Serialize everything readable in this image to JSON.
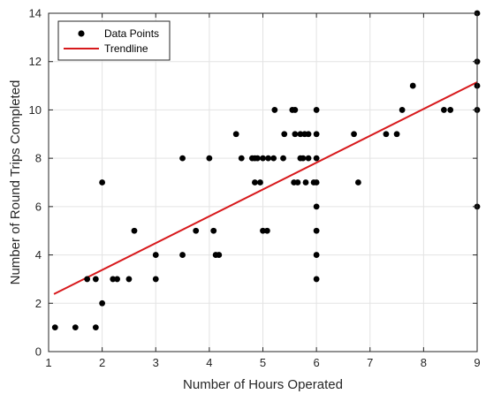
{
  "chart_data": {
    "type": "scatter",
    "title": "",
    "xlabel": "Number of Hours Operated",
    "ylabel": "Number of Round Trips Completed",
    "xlim": [
      1,
      9
    ],
    "ylim": [
      0,
      14
    ],
    "xticks": [
      1,
      2,
      3,
      4,
      5,
      6,
      7,
      8,
      9
    ],
    "yticks": [
      0,
      2,
      4,
      6,
      8,
      10,
      12,
      14
    ],
    "grid": true,
    "legend_position": "top-left",
    "series": [
      {
        "name": "Data Points",
        "kind": "scatter",
        "color": "#000000",
        "points": [
          [
            1.12,
            1
          ],
          [
            1.5,
            1
          ],
          [
            1.88,
            1
          ],
          [
            1.72,
            3
          ],
          [
            1.88,
            3
          ],
          [
            2.0,
            2
          ],
          [
            2.0,
            7
          ],
          [
            2.2,
            3
          ],
          [
            2.28,
            3
          ],
          [
            2.5,
            3
          ],
          [
            2.6,
            5
          ],
          [
            3.0,
            3
          ],
          [
            3.0,
            4
          ],
          [
            3.5,
            4
          ],
          [
            3.5,
            8
          ],
          [
            3.75,
            5
          ],
          [
            4.0,
            8
          ],
          [
            4.08,
            5
          ],
          [
            4.12,
            4
          ],
          [
            4.18,
            4
          ],
          [
            4.5,
            9
          ],
          [
            4.6,
            8
          ],
          [
            4.8,
            8
          ],
          [
            4.85,
            8
          ],
          [
            4.9,
            8
          ],
          [
            4.85,
            7
          ],
          [
            4.95,
            7
          ],
          [
            5.0,
            8
          ],
          [
            5.0,
            5
          ],
          [
            5.08,
            5
          ],
          [
            5.1,
            8
          ],
          [
            5.2,
            8
          ],
          [
            5.22,
            10
          ],
          [
            5.38,
            8
          ],
          [
            5.4,
            9
          ],
          [
            5.55,
            10
          ],
          [
            5.6,
            10
          ],
          [
            5.6,
            9
          ],
          [
            5.58,
            7
          ],
          [
            5.65,
            7
          ],
          [
            5.7,
            9
          ],
          [
            5.7,
            8
          ],
          [
            5.78,
            9
          ],
          [
            5.75,
            8
          ],
          [
            5.85,
            9
          ],
          [
            5.8,
            7
          ],
          [
            5.85,
            8
          ],
          [
            5.95,
            7
          ],
          [
            6.0,
            7
          ],
          [
            6.0,
            8
          ],
          [
            6.0,
            9
          ],
          [
            6.0,
            10
          ],
          [
            6.0,
            6
          ],
          [
            6.0,
            5
          ],
          [
            6.0,
            4
          ],
          [
            6.0,
            3
          ],
          [
            6.7,
            9
          ],
          [
            6.78,
            7
          ],
          [
            7.3,
            9
          ],
          [
            7.5,
            9
          ],
          [
            7.6,
            10
          ],
          [
            7.8,
            11
          ],
          [
            8.38,
            10
          ],
          [
            8.5,
            10
          ],
          [
            9.0,
            14
          ],
          [
            9.0,
            12
          ],
          [
            9.0,
            11
          ],
          [
            9.0,
            10
          ],
          [
            9.0,
            6
          ]
        ]
      },
      {
        "name": "Trendline",
        "kind": "line",
        "color": "#d7191c",
        "x": [
          1.1,
          9.0
        ],
        "y": [
          2.38,
          11.15
        ]
      }
    ]
  }
}
